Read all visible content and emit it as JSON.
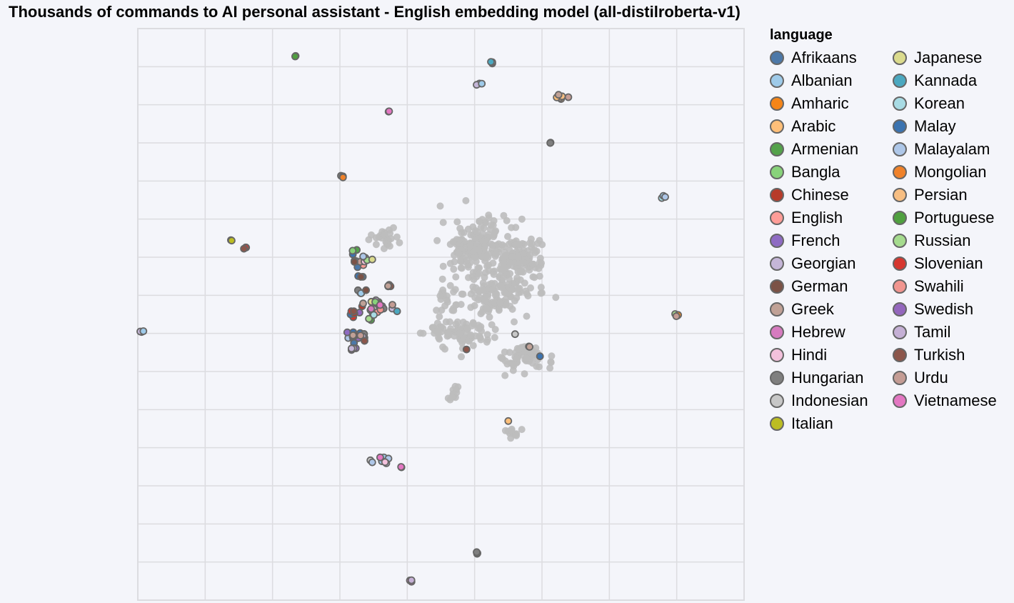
{
  "chart_data": {
    "type": "scatter",
    "title": "Thousands of commands to AI personal assistant - English embedding model (all-distilroberta-v1)",
    "xlabel": "",
    "ylabel": "",
    "xlim": [
      0,
      9
    ],
    "ylim": [
      0,
      15
    ],
    "grid": true,
    "legend": {
      "title": "language",
      "placement": "right",
      "entries": [
        {
          "name": "Afrikaans",
          "color": "#4c78a8"
        },
        {
          "name": "Albanian",
          "color": "#9ecae9"
        },
        {
          "name": "Amharic",
          "color": "#f58518"
        },
        {
          "name": "Arabic",
          "color": "#ffbf79"
        },
        {
          "name": "Armenian",
          "color": "#54a24b"
        },
        {
          "name": "Bangla",
          "color": "#88d27a"
        },
        {
          "name": "Chinese",
          "color": "#b73b2a"
        },
        {
          "name": "English",
          "color": "#ff9d98"
        },
        {
          "name": "French",
          "color": "#8e6bc3"
        },
        {
          "name": "Georgian",
          "color": "#c5b6d8"
        },
        {
          "name": "German",
          "color": "#7b5246"
        },
        {
          "name": "Greek",
          "color": "#c0a196"
        },
        {
          "name": "Hebrew",
          "color": "#d67bbf"
        },
        {
          "name": "Hindi",
          "color": "#f3c1dc"
        },
        {
          "name": "Hungarian",
          "color": "#7f7f7f"
        },
        {
          "name": "Indonesian",
          "color": "#c7c7c7"
        },
        {
          "name": "Italian",
          "color": "#bcbd22"
        },
        {
          "name": "Japanese",
          "color": "#dbdb8d"
        },
        {
          "name": "Kannada",
          "color": "#4ba8c0"
        },
        {
          "name": "Korean",
          "color": "#a8dbe4"
        },
        {
          "name": "Malay",
          "color": "#3b73b0"
        },
        {
          "name": "Malayalam",
          "color": "#aec7e8"
        },
        {
          "name": "Mongolian",
          "color": "#f0822a"
        },
        {
          "name": "Persian",
          "color": "#f7be82"
        },
        {
          "name": "Portuguese",
          "color": "#4fa03f"
        },
        {
          "name": "Russian",
          "color": "#a5db8e"
        },
        {
          "name": "Slovenian",
          "color": "#d6372f"
        },
        {
          "name": "Swahili",
          "color": "#f1958f"
        },
        {
          "name": "Swedish",
          "color": "#9467bd"
        },
        {
          "name": "Tamil",
          "color": "#c5b0d5"
        },
        {
          "name": "Turkish",
          "color": "#8c564b"
        },
        {
          "name": "Urdu",
          "color": "#c49c94"
        },
        {
          "name": "Vietnamese",
          "color": "#e377c2"
        }
      ]
    },
    "background_color": "#bdbdbd",
    "outline_color": "#666666",
    "clusters": [
      {
        "x": 2.33,
        "y": 14.27,
        "spread": 0.02,
        "count": 2,
        "labels": [
          "Armenian",
          "Portuguese"
        ]
      },
      {
        "x": 5.25,
        "y": 14.13,
        "spread": 0.04,
        "count": 3,
        "labels": [
          "Kannada",
          "Korean",
          "Kannada"
        ]
      },
      {
        "x": 5.07,
        "y": 13.57,
        "spread": 0.05,
        "count": 3,
        "labels": [
          "Malayalam",
          "Georgian",
          "Albanian"
        ]
      },
      {
        "x": 6.3,
        "y": 13.2,
        "spread": 0.07,
        "count": 6,
        "labels": [
          "Arabic",
          "Urdu",
          "Greek",
          "Persian",
          "Arabic",
          "Greek"
        ]
      },
      {
        "x": 3.73,
        "y": 12.83,
        "spread": 0.02,
        "count": 2,
        "labels": [
          "Hebrew",
          "Vietnamese"
        ]
      },
      {
        "x": 6.13,
        "y": 12.0,
        "spread": 0.02,
        "count": 2,
        "labels": [
          "Arabic",
          "Hungarian"
        ]
      },
      {
        "x": 3.04,
        "y": 11.13,
        "spread": 0.04,
        "count": 3,
        "labels": [
          "Hungarian",
          "Amharic",
          "Mongolian"
        ]
      },
      {
        "x": 7.8,
        "y": 10.6,
        "spread": 0.04,
        "count": 3,
        "labels": [
          "Korean",
          "Albanian",
          "Malayalam"
        ]
      },
      {
        "x": 1.38,
        "y": 9.45,
        "spread": 0.02,
        "count": 2,
        "labels": [
          "Japanese",
          "Italian"
        ]
      },
      {
        "x": 1.6,
        "y": 9.25,
        "spread": 0.04,
        "count": 3,
        "labels": [
          "Chinese",
          "Slovenian",
          "Turkish"
        ]
      },
      {
        "x": 8.0,
        "y": 7.5,
        "spread": 0.05,
        "count": 4,
        "labels": [
          "Bangla",
          "Russian",
          "Amharic",
          "Urdu"
        ]
      },
      {
        "x": 0.03,
        "y": 7.05,
        "spread": 0.04,
        "count": 3,
        "labels": [
          "Tamil",
          "Georgian",
          "Albanian"
        ]
      },
      {
        "x": 3.28,
        "y": 8.95,
        "spread": 0.2,
        "count": 16,
        "labels": [
          "English",
          "Swahili",
          "Afrikaans",
          "Malay",
          "Armenian",
          "Bangla",
          "Georgian",
          "Indonesian",
          "Greek",
          "Urdu",
          "Hindi",
          "Tamil",
          "Russian",
          "Japanese",
          "German",
          "Malayalam"
        ]
      },
      {
        "x": 3.3,
        "y": 8.5,
        "spread": 0.04,
        "count": 3,
        "labels": [
          "Afrikaans",
          "Malay",
          "German"
        ]
      },
      {
        "x": 3.73,
        "y": 8.25,
        "spread": 0.05,
        "count": 4,
        "labels": [
          "Greek",
          "Urdu",
          "Turkish",
          "Greek"
        ]
      },
      {
        "x": 3.33,
        "y": 8.1,
        "spread": 0.08,
        "count": 5,
        "labels": [
          "German",
          "Turkish",
          "Hungarian",
          "Albanian",
          "German"
        ]
      },
      {
        "x": 3.5,
        "y": 7.65,
        "spread": 0.28,
        "count": 28,
        "labels": [
          "Armenian",
          "Portuguese",
          "French",
          "Swedish",
          "German",
          "Turkish",
          "Italian",
          "Japanese",
          "Albanian",
          "Malayalam",
          "Georgian",
          "Tamil",
          "Hungarian",
          "Indonesian",
          "Chinese",
          "Slovenian",
          "Bangla",
          "Russian",
          "Afrikaans",
          "Malay",
          "Greek",
          "Urdu",
          "English",
          "Swahili",
          "Hebrew",
          "Vietnamese",
          "Korean",
          "Kannada"
        ]
      },
      {
        "x": 3.2,
        "y": 7.55,
        "spread": 0.04,
        "count": 3,
        "labels": [
          "Chinese",
          "Slovenian",
          "Turkish"
        ]
      },
      {
        "x": 3.25,
        "y": 6.9,
        "spread": 0.15,
        "count": 18,
        "labels": [
          "Afrikaans",
          "Malay",
          "German",
          "Turkish",
          "Albanian",
          "Malayalam",
          "Hungarian",
          "Georgian",
          "Tamil",
          "French",
          "Swedish",
          "Afrikaans",
          "Malay",
          "Turkish",
          "German",
          "Hungarian",
          "Greek",
          "Urdu"
        ]
      },
      {
        "x": 3.18,
        "y": 6.6,
        "spread": 0.06,
        "count": 4,
        "labels": [
          "French",
          "Swedish",
          "Tamil",
          "Georgian"
        ]
      },
      {
        "x": 5.6,
        "y": 6.98,
        "spread": 0,
        "count": 1,
        "labels": [
          "Indonesian"
        ]
      },
      {
        "x": 5.82,
        "y": 6.65,
        "spread": 0.02,
        "count": 2,
        "labels": [
          "Hindi",
          "Greek"
        ]
      },
      {
        "x": 4.88,
        "y": 6.58,
        "spread": 0,
        "count": 1,
        "labels": [
          "Turkish"
        ]
      },
      {
        "x": 5.97,
        "y": 6.4,
        "spread": 0,
        "count": 1,
        "labels": [
          "Malay"
        ]
      },
      {
        "x": 5.5,
        "y": 4.7,
        "spread": 0,
        "count": 1,
        "labels": [
          "Arabic"
        ]
      },
      {
        "x": 3.6,
        "y": 3.67,
        "spread": 0.15,
        "count": 9,
        "labels": [
          "Albanian",
          "Malayalam",
          "Georgian",
          "Tamil",
          "Indonesian",
          "Albanian",
          "Malayalam",
          "Hindi",
          "Vietnamese"
        ]
      },
      {
        "x": 3.9,
        "y": 3.5,
        "spread": 0.02,
        "count": 2,
        "labels": [
          "Hindi",
          "Vietnamese"
        ]
      },
      {
        "x": 5.03,
        "y": 1.25,
        "spread": 0.04,
        "count": 3,
        "labels": [
          "Bangla",
          "Russian",
          "Hungarian"
        ]
      },
      {
        "x": 4.03,
        "y": 0.5,
        "spread": 0.04,
        "count": 3,
        "labels": [
          "Hebrew",
          "Vietnamese",
          "Tamil"
        ]
      }
    ],
    "background_blobs": [
      {
        "x": 5.0,
        "y": 9.3,
        "sx": 0.45,
        "sy": 0.65,
        "count": 160
      },
      {
        "x": 5.65,
        "y": 8.9,
        "sx": 0.35,
        "sy": 0.65,
        "count": 140
      },
      {
        "x": 5.25,
        "y": 8.0,
        "sx": 0.55,
        "sy": 0.55,
        "count": 120
      },
      {
        "x": 4.8,
        "y": 7.0,
        "sx": 0.45,
        "sy": 0.35,
        "count": 80
      },
      {
        "x": 5.7,
        "y": 6.4,
        "sx": 0.35,
        "sy": 0.35,
        "count": 60
      },
      {
        "x": 3.7,
        "y": 9.5,
        "sx": 0.2,
        "sy": 0.25,
        "count": 25
      },
      {
        "x": 4.7,
        "y": 5.4,
        "sx": 0.08,
        "sy": 0.25,
        "count": 12
      },
      {
        "x": 5.55,
        "y": 4.4,
        "sx": 0.1,
        "sy": 0.15,
        "count": 12
      },
      {
        "x": 4.6,
        "y": 7.8,
        "sx": 0.15,
        "sy": 0.4,
        "count": 20
      }
    ]
  }
}
